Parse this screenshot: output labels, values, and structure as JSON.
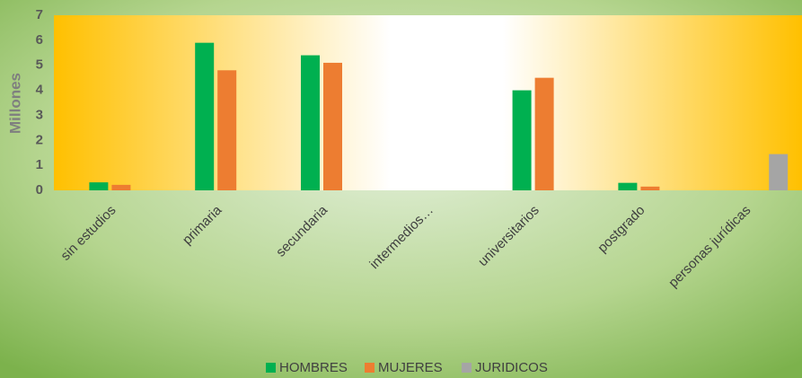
{
  "chart_data": {
    "type": "bar",
    "categories": [
      "sin estudios",
      "primaria",
      "secundaria",
      "intermedios…",
      "universitarios",
      "postgrado",
      "personas jurídicas"
    ],
    "series": [
      {
        "name": "HOMBRES",
        "color": "#00b050",
        "values": [
          0.32,
          5.9,
          5.4,
          0,
          4.0,
          0.3,
          0
        ]
      },
      {
        "name": "MUJERES",
        "color": "#ed7d31",
        "values": [
          0.22,
          4.8,
          5.1,
          0,
          4.5,
          0.15,
          0
        ]
      },
      {
        "name": "JURIDICOS",
        "color": "#a5a5a5",
        "values": [
          0,
          0,
          0,
          0,
          0,
          0,
          1.45
        ]
      }
    ],
    "y_label": "Millones",
    "ylim": [
      0,
      7
    ],
    "yticks": [
      0,
      1,
      2,
      3,
      4,
      5,
      6,
      7
    ],
    "grid": false,
    "legend": "bottom"
  }
}
